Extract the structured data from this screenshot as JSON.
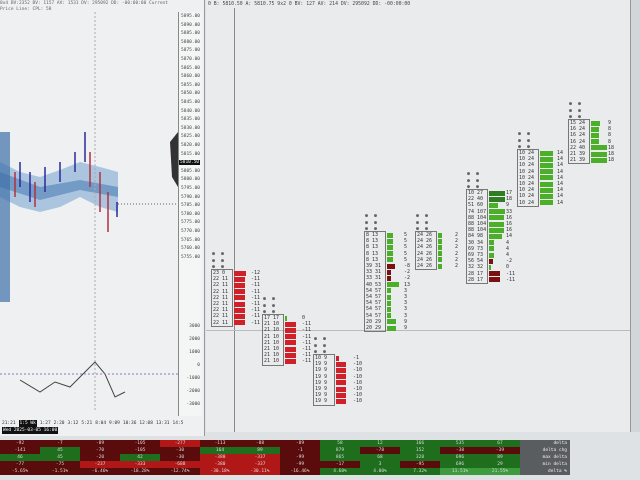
{
  "left_panel": {
    "info": "8x4 BV:2352 BV: 1157 AV: 1531 DV: 295092 DD: -00:00:00 Current Price Line: CPL: 58",
    "price_labels": [
      "5895.00",
      "5890.00",
      "5885.00",
      "5880.00",
      "5875.00",
      "5870.00",
      "5865.00",
      "5860.00",
      "5855.00",
      "5850.00",
      "5845.00",
      "5840.00",
      "5835.00",
      "5830.00",
      "5825.00",
      "5820.00",
      "5815.00",
      "5810.50",
      "5805.00",
      "5800.00",
      "5795.00",
      "5790.00",
      "5785.00",
      "5780.00",
      "5775.00",
      "5770.00",
      "5765.00",
      "5760.00",
      "5755.00"
    ],
    "current_price": "5810.50",
    "indicator_labels": [
      "3000",
      "2000",
      "1000",
      "0",
      "-1000",
      "-2000",
      "-3000"
    ],
    "time_labels": [
      "21:21",
      "1:5 Wk",
      "1:27",
      "2:20",
      "3:12",
      "5:21",
      "8:04",
      "9:09",
      "10:36",
      "12:08",
      "13:31",
      "14:5"
    ],
    "time_highlight": "Wed 2025-03-05 16:00"
  },
  "main": {
    "info": "0 B: 5810.50 A: 5810.75 9x2 0 BV: 127 AV: 214 DV: 295092 DD: -00:00:00",
    "colors": {
      "buy": "#4caf2a",
      "sell": "#d0202a",
      "dark_buy": "#2e7d22",
      "dark_sell": "#7a1010"
    },
    "footprints": [
      {
        "side": "sell",
        "rows": [
          [
            "23",
            "0",
            "-12"
          ],
          [
            "22",
            "11",
            "-11"
          ],
          [
            "22",
            "11",
            "-11"
          ],
          [
            "22",
            "11",
            "-11"
          ],
          [
            "22",
            "11",
            "-11"
          ],
          [
            "22",
            "11",
            "-11"
          ],
          [
            "22",
            "11",
            "-11"
          ],
          [
            "22",
            "11",
            "-11"
          ],
          [
            "22",
            "11",
            "-11"
          ]
        ]
      },
      {
        "side": "sell",
        "rows": [
          [
            "17",
            "17",
            "0"
          ],
          [
            "21",
            "10",
            "-11"
          ],
          [
            "21",
            "10",
            "-11"
          ],
          [
            "21",
            "10",
            "-11"
          ],
          [
            "21",
            "10",
            "-11"
          ],
          [
            "21",
            "10",
            "-11"
          ],
          [
            "21",
            "10",
            "-11"
          ],
          [
            "21",
            "10",
            "-11"
          ]
        ]
      },
      {
        "side": "sell",
        "rows": [
          [
            "10",
            "9",
            "-1"
          ],
          [
            "19",
            "9",
            "-10"
          ],
          [
            "19",
            "9",
            "-10"
          ],
          [
            "19",
            "9",
            "-10"
          ],
          [
            "19",
            "9",
            "-10"
          ],
          [
            "19",
            "9",
            "-10"
          ],
          [
            "19",
            "9",
            "-10"
          ],
          [
            "19",
            "9",
            "-10"
          ]
        ]
      },
      {
        "side": "buy",
        "rows": [
          [
            "8",
            "13",
            "5"
          ],
          [
            "8",
            "13",
            "5"
          ],
          [
            "8",
            "13",
            "5"
          ],
          [
            "8",
            "13",
            "5"
          ],
          [
            "8",
            "13",
            "5"
          ],
          [
            "39",
            "31",
            "-8"
          ],
          [
            "33",
            "31",
            "-2"
          ],
          [
            "33",
            "31",
            "-2"
          ],
          [
            "40",
            "53",
            "13"
          ],
          [
            "54",
            "57",
            "3"
          ],
          [
            "54",
            "57",
            "3"
          ],
          [
            "54",
            "57",
            "3"
          ],
          [
            "54",
            "57",
            "3"
          ],
          [
            "54",
            "57",
            "3"
          ],
          [
            "20",
            "29",
            "9"
          ],
          [
            "20",
            "29",
            "9"
          ]
        ]
      },
      {
        "side": "buy",
        "rows": [
          [
            "24",
            "26",
            "2"
          ],
          [
            "24",
            "26",
            "2"
          ],
          [
            "24",
            "26",
            "2"
          ],
          [
            "24",
            "26",
            "2"
          ],
          [
            "24",
            "26",
            "2"
          ],
          [
            "24",
            "26",
            "2"
          ]
        ]
      },
      {
        "side": "buy",
        "rows": [
          [
            "10",
            "27",
            "17"
          ],
          [
            "22",
            "40",
            "18"
          ],
          [
            "51",
            "60",
            "9"
          ],
          [
            "74",
            "107",
            "33"
          ],
          [
            "88",
            "104",
            "16"
          ],
          [
            "88",
            "104",
            "16"
          ],
          [
            "88",
            "104",
            "16"
          ],
          [
            "84",
            "98",
            "14"
          ],
          [
            "30",
            "34",
            "4"
          ],
          [
            "69",
            "73",
            "4"
          ],
          [
            "69",
            "73",
            "4"
          ],
          [
            "56",
            "54",
            "-2"
          ],
          [
            "32",
            "32",
            "0"
          ],
          [
            "28",
            "17",
            "-11"
          ],
          [
            "28",
            "17",
            "-11"
          ]
        ]
      },
      {
        "side": "buy",
        "rows": [
          [
            "10",
            "24",
            "14"
          ],
          [
            "10",
            "24",
            "14"
          ],
          [
            "10",
            "24",
            "14"
          ],
          [
            "10",
            "24",
            "14"
          ],
          [
            "10",
            "24",
            "14"
          ],
          [
            "10",
            "24",
            "14"
          ],
          [
            "10",
            "24",
            "14"
          ],
          [
            "10",
            "24",
            "14"
          ],
          [
            "10",
            "24",
            "14"
          ]
        ]
      },
      {
        "side": "buy",
        "rows": [
          [
            "15",
            "24",
            "9"
          ],
          [
            "16",
            "24",
            "8"
          ],
          [
            "16",
            "24",
            "8"
          ],
          [
            "16",
            "24",
            "8"
          ],
          [
            "22",
            "40",
            "18"
          ],
          [
            "21",
            "39",
            "18"
          ],
          [
            "21",
            "39",
            "18"
          ]
        ]
      }
    ]
  },
  "table": {
    "row_labels": [
      "delta",
      "delta chg",
      "max delta",
      "min delta",
      "delta %"
    ],
    "columns": [
      [
        "-92",
        "-141",
        "46",
        "-77",
        "-5.65%"
      ],
      [
        "-7",
        "45",
        "45",
        "-75",
        "-1.51%"
      ],
      [
        "-89",
        "-70",
        "-20",
        "-237",
        "-6.46%"
      ],
      [
        "-105",
        "-105",
        "42",
        "-333",
        "-18.28%"
      ],
      [
        "-277",
        "-30",
        "-30",
        "-688",
        "-12.74%"
      ],
      [
        "-113",
        "164",
        "-380",
        "-380",
        "-30.18%"
      ],
      [
        "-88",
        "89",
        "-337",
        "-337",
        "-30.11%"
      ],
      [
        "-89",
        "-1",
        "-99",
        "-99",
        "-16.46%"
      ],
      [
        "58",
        "879",
        "865",
        "-17",
        "4.60%"
      ],
      [
        "12",
        "-78",
        "68",
        "3",
        "4.00%"
      ],
      [
        "166",
        "152",
        "328",
        "-95",
        "7.32%"
      ],
      [
        "535",
        "-38",
        "696",
        "696",
        "11.51%"
      ],
      [
        "67",
        "-39",
        "89",
        "29",
        "21.55%"
      ]
    ]
  }
}
